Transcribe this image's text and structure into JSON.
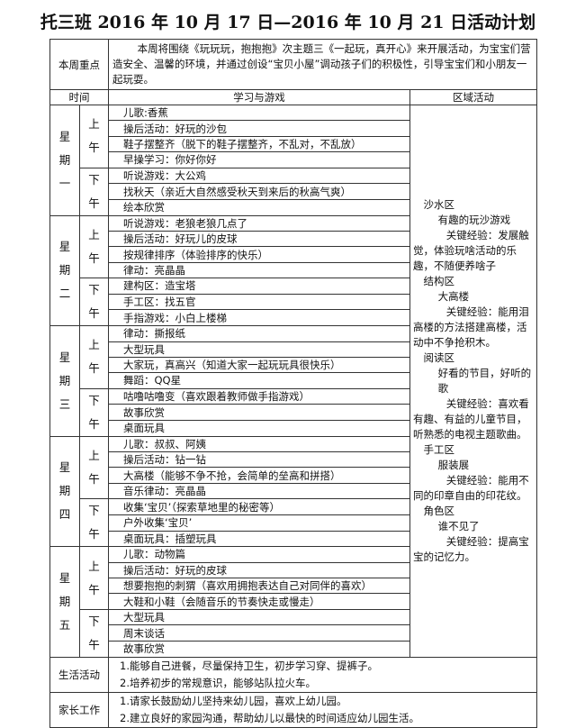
{
  "title": "托三班 2016 年 10 月 17 日—2016 年 10 月 21 日活动计划",
  "focus": {
    "label": "本周重点",
    "text": "本周将围绕《玩玩玩，抱抱抱》次主题三《一起玩，真开心》来开展活动，为宝宝们营造安全、温馨的环境，并通过创设“宝贝小屋”调动孩子们的积极性，引导宝宝们和小朋友一起玩耍。"
  },
  "headers": {
    "time": "时间",
    "learning": "学习与游戏",
    "region": "区域活动"
  },
  "am": "上午",
  "pm": "下午",
  "days": [
    {
      "name": "星期一",
      "am": [
        "儿歌:香蕉",
        "操后活动：好玩的沙包",
        "鞋子摆整齐（脱下的鞋子摆整齐，不乱对，不乱放）",
        "早操学习：你好你好"
      ],
      "pm": [
        "听说游戏：大公鸡",
        "找秋天（亲近大自然感受秋天到来后的秋高气爽）",
        "绘本欣赏"
      ]
    },
    {
      "name": "星期二",
      "am": [
        "听说游戏：老狼老狼几点了",
        "操后活动：好玩儿的皮球",
        "按规律排序（体验排序的快乐）",
        "律动：亮晶晶"
      ],
      "pm": [
        "建构区：造宝塔",
        "手工区：找五官",
        "手指游戏：小白上楼梯"
      ]
    },
    {
      "name": "星期三",
      "am": [
        "律动：撕报纸",
        "大型玩具",
        "大家玩，真高兴（知道大家一起玩玩具很快乐）",
        "舞蹈：QQ星"
      ],
      "pm": [
        "咕噜咕噜变（喜欢跟着教师做手指游戏）",
        "故事欣赏",
        "桌面玩具"
      ]
    },
    {
      "name": "星期四",
      "am": [
        "儿歌：叔叔、阿姨",
        "操后活动：钻一钻",
        "大高楼（能够不争不抢，会简单的垒高和拼搭）",
        "音乐律动：亮晶晶"
      ],
      "pm": [
        "收集‘宝贝’（探索草地里的秘密等）",
        "户外收集‘宝贝’",
        "桌面玩具：插塑玩具"
      ]
    },
    {
      "name": "星期五",
      "am": [
        "儿歌：动物篇",
        "操后活动：好玩的皮球",
        "想要抱抱的刺猬（喜欢用拥抱表达自己对同伴的喜欢）",
        "大鞋和小鞋（会随音乐的节奏快走或慢走）"
      ],
      "pm": [
        "大型玩具",
        "周末谈话",
        "故事欣赏"
      ]
    }
  ],
  "regions": [
    {
      "area": "沙水区",
      "activity": "有趣的玩沙游戏",
      "experience": "关键经验：发展触觉，体验玩啥活动的乐趣，不随便养啥子"
    },
    {
      "area": "结构区",
      "activity": "大高楼",
      "experience": "关键经验：能用泪高楼的方法搭建高楼，活动中不争抢积木。"
    },
    {
      "area": "阅读区",
      "activity": "好看的节目，好听的歌",
      "experience": "关键经验：喜欢看有趣、有益的儿童节目，听熟悉的电视主题歌曲。"
    },
    {
      "area": "手工区",
      "activity": "服装展",
      "experience": "关键经验：能用不同的印章自由的印花纹。"
    },
    {
      "area": "角色区",
      "activity": "谁不见了",
      "experience": "关键经验：提高宝宝的记忆力。"
    }
  ],
  "life": {
    "label": "生活活动",
    "items": [
      "1.能够自己进餐，尽量保持卫生，初步学习穿、提裤子。",
      "2.培养初步的常规意识，能够站队拉火车。"
    ]
  },
  "parents": {
    "label": "家长工作",
    "items": [
      "1.请家长鼓励幼儿坚持来幼儿园，喜欢上幼儿园。",
      "2.建立良好的家园沟通，帮助幼儿以最快的时间适应幼儿园生活。"
    ]
  }
}
